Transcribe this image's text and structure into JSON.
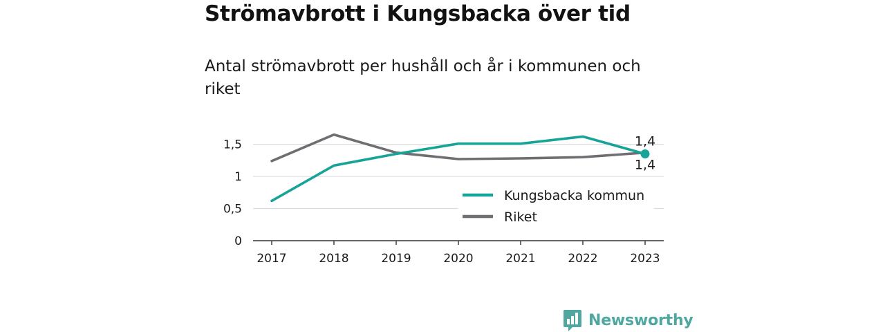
{
  "brand": {
    "name": "Newsworthy",
    "color": "#4fa7a0"
  },
  "chart_data": {
    "type": "line",
    "title": "Strömavbrott i Kungsbacka över tid",
    "subtitle": "Antal strömavbrott per hushåll och år i kommunen och riket",
    "x": [
      "2017",
      "2018",
      "2019",
      "2020",
      "2021",
      "2022",
      "2023"
    ],
    "yticks": [
      0,
      0.5,
      1,
      1.5
    ],
    "ytick_labels": [
      "0",
      "0,5",
      "1",
      "1,5"
    ],
    "ylim": [
      0,
      1.7
    ],
    "grid": "horizontal",
    "legend_position": "lower-right",
    "series": [
      {
        "name": "Kungsbacka kommun",
        "color": "#16a398",
        "values": [
          0.62,
          1.17,
          1.35,
          1.51,
          1.51,
          1.62,
          1.35
        ],
        "end_label": "1,4"
      },
      {
        "name": "Riket",
        "color": "#6f6e73",
        "values": [
          1.24,
          1.65,
          1.37,
          1.27,
          1.28,
          1.3,
          1.37
        ],
        "end_label": "1,4"
      }
    ]
  }
}
